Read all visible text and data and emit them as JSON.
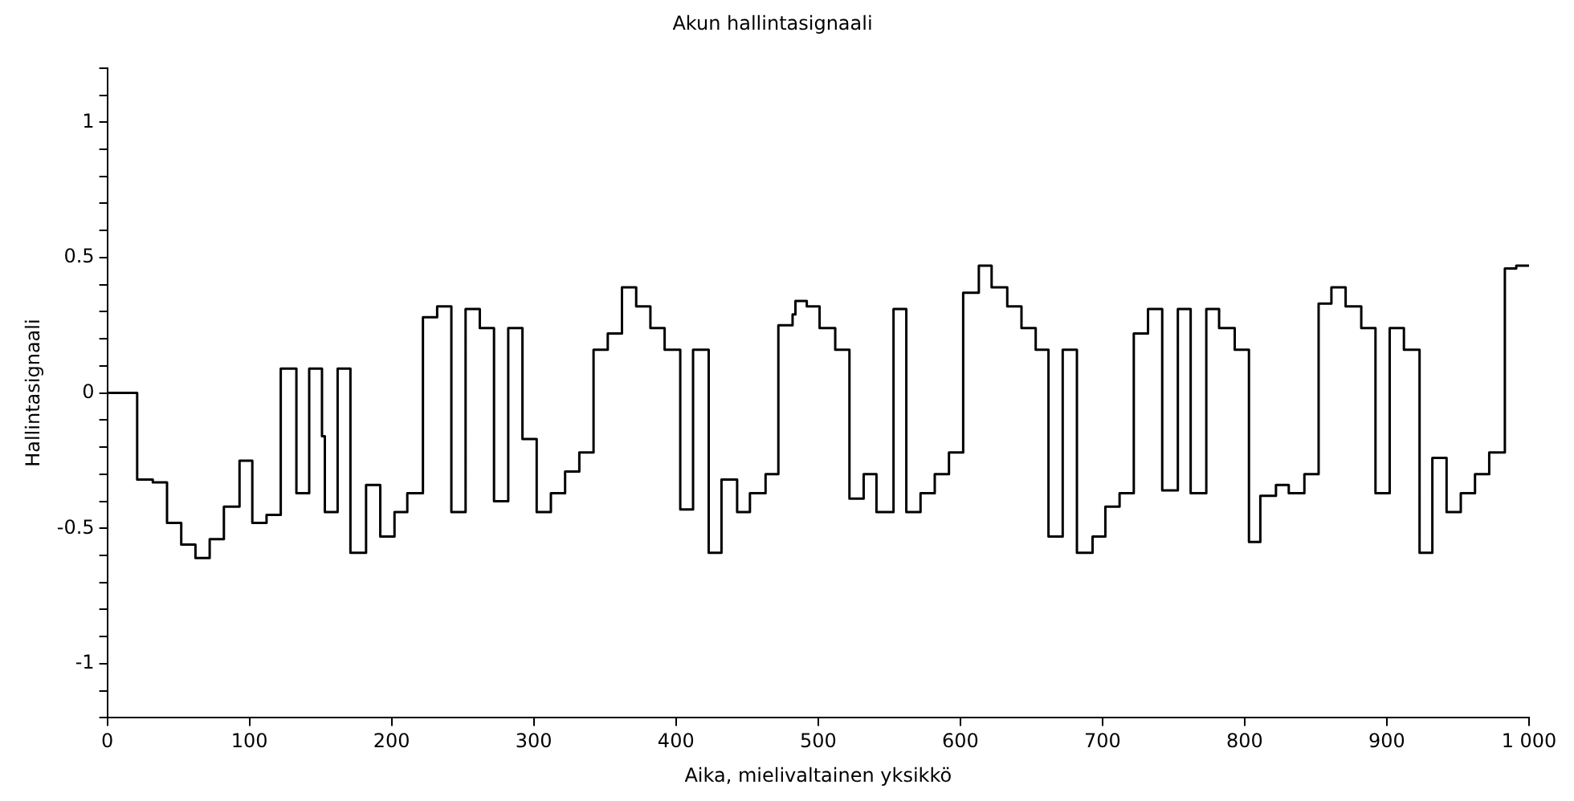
{
  "chart_data": {
    "type": "step",
    "title": "Akun hallintasignaali",
    "xlabel": "Aika, mielivaltainen yksikkö",
    "ylabel": "Hallintasignaali",
    "x": [
      0,
      21,
      32,
      42,
      52,
      62,
      72,
      82,
      93,
      102,
      112,
      122,
      133,
      142,
      151,
      153,
      162,
      171,
      182,
      192,
      202,
      211,
      222,
      232,
      242,
      252,
      262,
      272,
      282,
      292,
      302,
      312,
      322,
      332,
      342,
      352,
      362,
      372,
      382,
      392,
      403,
      412,
      423,
      432,
      443,
      452,
      463,
      472,
      482,
      484,
      492,
      501,
      512,
      522,
      532,
      541,
      553,
      562,
      572,
      582,
      592,
      602,
      613,
      622,
      633,
      643,
      653,
      662,
      672,
      682,
      693,
      702,
      712,
      722,
      732,
      742,
      753,
      762,
      773,
      782,
      793,
      803,
      811,
      822,
      831,
      842,
      852,
      861,
      871,
      882,
      892,
      902,
      912,
      923,
      932,
      942,
      952,
      962,
      972,
      983,
      991,
      1000
    ],
    "series": [
      {
        "color": "#000000",
        "values": [
          0,
          -0.32,
          -0.33,
          -0.48,
          -0.56,
          -0.61,
          -0.54,
          -0.42,
          -0.25,
          -0.48,
          -0.45,
          0.09,
          -0.37,
          0.09,
          -0.16,
          -0.44,
          0.09,
          -0.59,
          -0.34,
          -0.53,
          -0.44,
          -0.37,
          0.28,
          0.32,
          -0.44,
          0.31,
          0.24,
          -0.4,
          0.24,
          -0.17,
          -0.44,
          -0.37,
          -0.29,
          -0.22,
          0.16,
          0.22,
          0.39,
          0.32,
          0.24,
          0.16,
          -0.43,
          0.16,
          -0.59,
          -0.32,
          -0.44,
          -0.37,
          -0.3,
          0.25,
          0.29,
          0.34,
          0.32,
          0.24,
          0.16,
          -0.39,
          -0.3,
          -0.44,
          0.31,
          -0.44,
          -0.37,
          -0.3,
          -0.22,
          0.37,
          0.47,
          0.39,
          0.32,
          0.24,
          0.16,
          -0.53,
          0.16,
          -0.59,
          -0.53,
          -0.42,
          -0.37,
          0.22,
          0.31,
          -0.36,
          0.31,
          -0.37,
          0.31,
          0.24,
          0.16,
          -0.55,
          -0.38,
          -0.34,
          -0.37,
          -0.3,
          0.33,
          0.39,
          0.32,
          0.24,
          -0.37,
          0.24,
          0.16,
          -0.59,
          -0.24,
          -0.44,
          -0.37,
          -0.3,
          -0.22,
          0.46,
          0.47,
          0.47
        ]
      }
    ],
    "xlim": [
      0,
      1000
    ],
    "xticks": [
      0,
      100,
      200,
      300,
      400,
      500,
      600,
      700,
      800,
      900,
      {
        "value": 1000,
        "label": "1 000"
      }
    ],
    "ylim": [
      -1.2,
      1.2
    ],
    "yticks": [
      {
        "value": -1.2,
        "label": null
      },
      {
        "value": -1.1,
        "label": null
      },
      {
        "value": -1,
        "label": "-1"
      },
      {
        "value": -0.9,
        "label": null
      },
      {
        "value": -0.8,
        "label": null
      },
      {
        "value": -0.7,
        "label": null
      },
      {
        "value": -0.6,
        "label": null
      },
      {
        "value": -0.5,
        "label": "-0.5"
      },
      {
        "value": -0.4,
        "label": null
      },
      {
        "value": -0.3,
        "label": null
      },
      {
        "value": -0.2,
        "label": null
      },
      {
        "value": -0.1,
        "label": null
      },
      0,
      {
        "value": 0.1,
        "label": null
      },
      {
        "value": 0.2,
        "label": null
      },
      {
        "value": 0.3,
        "label": null
      },
      {
        "value": 0.4,
        "label": null
      },
      0.5,
      {
        "value": 0.6,
        "label": null
      },
      {
        "value": 0.7,
        "label": null
      },
      {
        "value": 0.8,
        "label": null
      },
      {
        "value": 0.9,
        "label": null
      },
      1,
      {
        "value": 1.1,
        "label": null
      },
      {
        "value": 1.2,
        "label": null
      }
    ],
    "grid": false,
    "legend": false,
    "marker": "none",
    "line_style": "solid"
  }
}
